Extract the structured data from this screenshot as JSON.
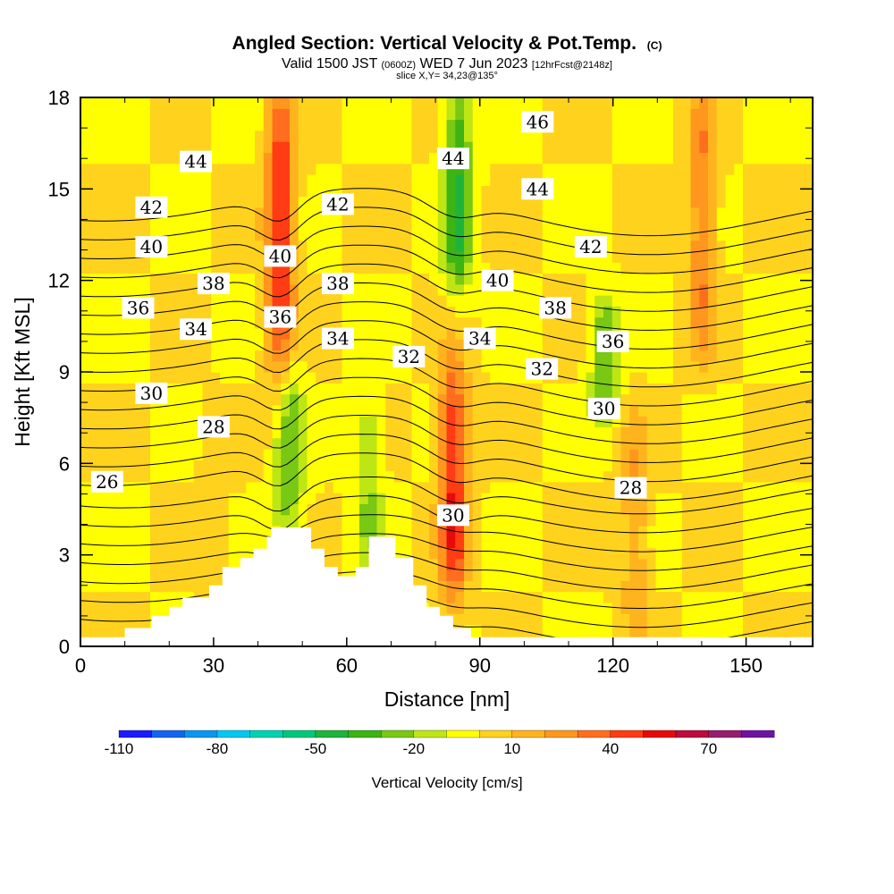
{
  "header": {
    "title": "Angled Section: Vertical Velocity & Pot.Temp.",
    "copyright": "(C)",
    "valid_prefix": "Valid 1500 JST",
    "valid_utc": "(0600Z)",
    "valid_date": "WED 7 Jun 2023",
    "forecast": "[12hrFcst@2148z]",
    "slice": "slice X,Y= 34,23@135°"
  },
  "chart_data": {
    "type": "heatmap",
    "xlabel": "Distance [nm]",
    "ylabel": "Height [Kft MSL]",
    "xlim": [
      0,
      165
    ],
    "ylim": [
      0,
      18
    ],
    "x_ticks": [
      0,
      30,
      60,
      90,
      120,
      150
    ],
    "y_ticks": [
      0,
      3,
      6,
      9,
      12,
      15,
      18
    ],
    "colorbar": {
      "label": "Vertical Velocity [cm/s]",
      "min": -110,
      "max": 90,
      "step": 10,
      "tick_labels": [
        -110,
        -80,
        -50,
        -20,
        10,
        40,
        70
      ],
      "colors": [
        "#1b1bff",
        "#1464f0",
        "#0a96f0",
        "#00c8f0",
        "#00d2b4",
        "#00c87a",
        "#1eb43c",
        "#3cb414",
        "#78c814",
        "#bee614",
        "#ffff00",
        "#ffd21e",
        "#ffb41e",
        "#ff961e",
        "#ff6e1e",
        "#ff3c14",
        "#e60a0a",
        "#be0a3c",
        "#961e6e",
        "#6e14a0"
      ]
    },
    "vertical_velocity_shading": {
      "background_cm_s": 0,
      "features": [
        {
          "x_nm": 45,
          "z_kft": [
            9,
            18
          ],
          "value_cm_s": 50
        },
        {
          "x_nm": 84,
          "z_kft": [
            2,
            9
          ],
          "value_cm_s": 50
        },
        {
          "x_nm": 140,
          "z_kft": [
            10,
            18
          ],
          "value_cm_s": 30
        },
        {
          "x_nm": 85,
          "z_kft": [
            12,
            18
          ],
          "value_cm_s": -40
        },
        {
          "x_nm": 47,
          "z_kft": [
            4,
            9
          ],
          "value_cm_s": -30
        },
        {
          "x_nm": 65,
          "z_kft": [
            3,
            8
          ],
          "value_cm_s": -20
        },
        {
          "x_nm": 118,
          "z_kft": [
            8,
            11
          ],
          "value_cm_s": -30
        },
        {
          "x_nm": 125,
          "z_kft": [
            1,
            7
          ],
          "value_cm_s": 20
        },
        {
          "x_nm": 30,
          "z_kft": [
            2,
            7
          ],
          "value_cm_s": 10
        }
      ]
    },
    "potential_temperature_contours": {
      "interval": 1,
      "labeled_levels": [
        {
          "value": 26,
          "x_nm": 6,
          "z_kft": 5.4
        },
        {
          "value": 28,
          "x_nm": 30,
          "z_kft": 7.2
        },
        {
          "value": 28,
          "x_nm": 124,
          "z_kft": 5.2
        },
        {
          "value": 30,
          "x_nm": 16,
          "z_kft": 8.3
        },
        {
          "value": 30,
          "x_nm": 84,
          "z_kft": 4.3
        },
        {
          "value": 30,
          "x_nm": 118,
          "z_kft": 7.8
        },
        {
          "value": 32,
          "x_nm": 74,
          "z_kft": 9.5
        },
        {
          "value": 32,
          "x_nm": 104,
          "z_kft": 9.1
        },
        {
          "value": 34,
          "x_nm": 26,
          "z_kft": 10.4
        },
        {
          "value": 34,
          "x_nm": 58,
          "z_kft": 10.1
        },
        {
          "value": 34,
          "x_nm": 90,
          "z_kft": 10.1
        },
        {
          "value": 36,
          "x_nm": 13,
          "z_kft": 11.1
        },
        {
          "value": 36,
          "x_nm": 45,
          "z_kft": 10.8
        },
        {
          "value": 36,
          "x_nm": 120,
          "z_kft": 10.0
        },
        {
          "value": 38,
          "x_nm": 30,
          "z_kft": 11.9
        },
        {
          "value": 38,
          "x_nm": 58,
          "z_kft": 11.9
        },
        {
          "value": 38,
          "x_nm": 107,
          "z_kft": 11.1
        },
        {
          "value": 40,
          "x_nm": 16,
          "z_kft": 13.1
        },
        {
          "value": 40,
          "x_nm": 45,
          "z_kft": 12.8
        },
        {
          "value": 40,
          "x_nm": 94,
          "z_kft": 12.0
        },
        {
          "value": 42,
          "x_nm": 16,
          "z_kft": 14.4
        },
        {
          "value": 42,
          "x_nm": 58,
          "z_kft": 14.5
        },
        {
          "value": 42,
          "x_nm": 115,
          "z_kft": 13.1
        },
        {
          "value": 44,
          "x_nm": 26,
          "z_kft": 15.9
        },
        {
          "value": 44,
          "x_nm": 84,
          "z_kft": 16.0
        },
        {
          "value": 44,
          "x_nm": 103,
          "z_kft": 15.0
        },
        {
          "value": 46,
          "x_nm": 103,
          "z_kft": 17.2
        }
      ]
    },
    "terrain_kft": [
      [
        0,
        0.3
      ],
      [
        10,
        0.3
      ],
      [
        10,
        0.6
      ],
      [
        16,
        0.6
      ],
      [
        16,
        1.0
      ],
      [
        20,
        1.0
      ],
      [
        20,
        1.3
      ],
      [
        23,
        1.3
      ],
      [
        23,
        1.6
      ],
      [
        29,
        1.6
      ],
      [
        29,
        2.0
      ],
      [
        32,
        2.0
      ],
      [
        32,
        2.6
      ],
      [
        36,
        2.6
      ],
      [
        36,
        2.9
      ],
      [
        39,
        2.9
      ],
      [
        39,
        3.2
      ],
      [
        42,
        3.2
      ],
      [
        42,
        3.6
      ],
      [
        43,
        3.6
      ],
      [
        43,
        3.9
      ],
      [
        52,
        3.9
      ],
      [
        52,
        3.2
      ],
      [
        55,
        3.2
      ],
      [
        55,
        2.6
      ],
      [
        58,
        2.6
      ],
      [
        58,
        2.3
      ],
      [
        62,
        2.3
      ],
      [
        62,
        2.6
      ],
      [
        65,
        2.6
      ],
      [
        65,
        3.6
      ],
      [
        71,
        3.6
      ],
      [
        71,
        2.9
      ],
      [
        75,
        2.9
      ],
      [
        75,
        2.0
      ],
      [
        78,
        2.0
      ],
      [
        78,
        1.3
      ],
      [
        81,
        1.3
      ],
      [
        81,
        1.0
      ],
      [
        84,
        1.0
      ],
      [
        84,
        0.6
      ],
      [
        88,
        0.6
      ],
      [
        88,
        0.3
      ],
      [
        165,
        0.3
      ]
    ]
  }
}
